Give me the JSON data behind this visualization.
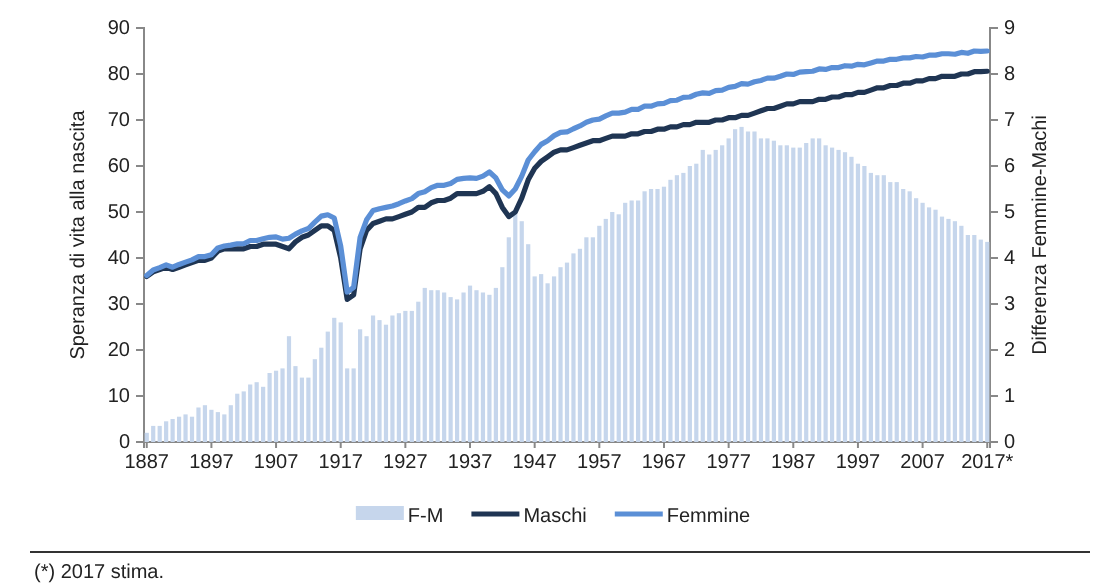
{
  "chart_data": {
    "type": "line",
    "ylabel": "Speranza di vita alla nascita",
    "y2label": "Differenza Femmine-Machi",
    "categories": [
      "1887",
      null,
      null,
      null,
      null,
      null,
      null,
      null,
      null,
      null,
      "1897",
      null,
      null,
      null,
      null,
      null,
      null,
      null,
      null,
      null,
      "1907",
      null,
      null,
      null,
      null,
      null,
      null,
      null,
      null,
      null,
      "1917",
      null,
      null,
      null,
      null,
      null,
      null,
      null,
      null,
      null,
      "1927",
      null,
      null,
      null,
      null,
      null,
      null,
      null,
      null,
      null,
      "1937",
      null,
      null,
      null,
      null,
      null,
      null,
      null,
      null,
      null,
      "1947",
      null,
      null,
      null,
      null,
      null,
      null,
      null,
      null,
      null,
      "1957",
      null,
      null,
      null,
      null,
      null,
      null,
      null,
      null,
      null,
      "1967",
      null,
      null,
      null,
      null,
      null,
      null,
      null,
      null,
      null,
      "1977",
      null,
      null,
      null,
      null,
      null,
      null,
      null,
      null,
      null,
      "1987",
      null,
      null,
      null,
      null,
      null,
      null,
      null,
      null,
      null,
      "1997",
      null,
      null,
      null,
      null,
      null,
      null,
      null,
      null,
      null,
      "2007",
      null,
      null,
      null,
      null,
      null,
      null,
      null,
      null,
      null,
      "2017*"
    ],
    "ylim": [
      0,
      90
    ],
    "yticks": [
      0,
      10,
      20,
      30,
      40,
      50,
      60,
      70,
      80,
      90
    ],
    "y2lim": [
      0,
      9
    ],
    "y2ticks": [
      0,
      1,
      2,
      3,
      4,
      5,
      6,
      7,
      8,
      9
    ],
    "grid": false,
    "legend": "bottom",
    "marker": "none",
    "series": [
      {
        "name": "F-M",
        "type": "bar",
        "axis": "y2",
        "color": "#c6d6ec",
        "values": [
          0.2,
          0.35,
          0.35,
          0.45,
          0.5,
          0.55,
          0.6,
          0.55,
          0.75,
          0.8,
          0.7,
          0.65,
          0.6,
          0.8,
          1.05,
          1.1,
          1.25,
          1.3,
          1.2,
          1.5,
          1.55,
          1.6,
          2.3,
          1.65,
          1.4,
          1.4,
          1.8,
          2.05,
          2.4,
          2.7,
          2.6,
          1.6,
          1.6,
          2.45,
          2.3,
          2.75,
          2.65,
          2.55,
          2.75,
          2.8,
          2.85,
          2.85,
          3.05,
          3.35,
          3.3,
          3.3,
          3.25,
          3.15,
          3.1,
          3.25,
          3.4,
          3.3,
          3.25,
          3.2,
          3.35,
          3.8,
          4.45,
          5.0,
          4.8,
          4.3,
          3.6,
          3.65,
          3.45,
          3.6,
          3.8,
          3.9,
          4.1,
          4.2,
          4.45,
          4.45,
          4.7,
          4.85,
          5.0,
          4.95,
          5.2,
          5.25,
          5.25,
          5.45,
          5.5,
          5.5,
          5.55,
          5.7,
          5.8,
          5.85,
          6.0,
          6.05,
          6.35,
          6.25,
          6.35,
          6.45,
          6.6,
          6.8,
          6.85,
          6.75,
          6.75,
          6.6,
          6.6,
          6.55,
          6.45,
          6.45,
          6.4,
          6.4,
          6.5,
          6.6,
          6.6,
          6.45,
          6.4,
          6.35,
          6.3,
          6.2,
          6.05,
          6.0,
          5.85,
          5.8,
          5.8,
          5.65,
          5.65,
          5.5,
          5.45,
          5.3,
          5.2,
          5.1,
          5.05,
          4.9,
          4.85,
          4.8,
          4.7,
          4.5,
          4.5,
          4.4,
          4.35
        ]
      },
      {
        "name": "Maschi",
        "color": "#1f3553",
        "values": [
          36,
          37,
          37.5,
          38,
          37.5,
          38,
          38.5,
          39,
          39.5,
          39.5,
          40,
          41.5,
          42,
          42,
          42,
          42,
          42.5,
          42.5,
          43,
          43,
          43,
          42.5,
          42,
          43.5,
          44.5,
          45,
          46,
          47,
          47,
          46,
          40,
          31,
          32,
          42,
          46,
          47.5,
          48,
          48.5,
          48.5,
          49,
          49.5,
          50,
          51,
          51,
          52,
          52.5,
          52.5,
          53,
          54,
          54,
          54,
          54,
          54.5,
          55.5,
          54,
          51,
          49,
          50,
          53,
          57,
          59.5,
          61,
          62,
          63,
          63.5,
          63.5,
          64,
          64.5,
          65,
          65.5,
          65.5,
          66,
          66.5,
          66.5,
          66.5,
          67,
          67,
          67.5,
          67.5,
          68,
          68,
          68.5,
          68.5,
          69,
          69,
          69.5,
          69.5,
          69.5,
          70,
          70,
          70.5,
          70.5,
          71,
          71,
          71.5,
          72,
          72.5,
          72.5,
          73,
          73.5,
          73.5,
          74,
          74,
          74,
          74.5,
          74.5,
          75,
          75,
          75.5,
          75.5,
          76,
          76,
          76.5,
          77,
          77,
          77.5,
          77.5,
          78,
          78,
          78.5,
          78.5,
          79,
          79,
          79.5,
          79.5,
          79.5,
          80,
          80,
          80.5,
          80.5,
          80.6
        ]
      },
      {
        "name": "Femmine",
        "color": "#5b8fd6",
        "values": [
          36.2,
          37.4,
          37.9,
          38.5,
          38,
          38.6,
          39.1,
          39.6,
          40.3,
          40.3,
          40.7,
          42.2,
          42.6,
          42.8,
          43.1,
          43.1,
          43.8,
          43.8,
          44.2,
          44.5,
          44.6,
          44.1,
          44.3,
          45.2,
          45.9,
          46.4,
          47.8,
          49.1,
          49.4,
          48.7,
          42.6,
          32.6,
          33.6,
          44.5,
          48.3,
          50.3,
          50.7,
          51,
          51.3,
          51.8,
          52.4,
          52.9,
          54,
          54.4,
          55.3,
          55.8,
          55.8,
          56.2,
          57.1,
          57.3,
          57.4,
          57.3,
          57.8,
          58.7,
          57.4,
          54.8,
          53.5,
          55,
          57.8,
          61.3,
          63.1,
          64.7,
          65.5,
          66.6,
          67.3,
          67.4,
          68.1,
          68.7,
          69.5,
          70,
          70.2,
          70.9,
          71.5,
          71.5,
          71.7,
          72.3,
          72.3,
          73,
          73,
          73.5,
          73.6,
          74.2,
          74.3,
          74.9,
          75,
          75.6,
          75.9,
          75.8,
          76.4,
          76.5,
          77.1,
          77.3,
          77.9,
          77.8,
          78.3,
          78.6,
          79.1,
          79.1,
          79.5,
          80,
          79.9,
          80.4,
          80.5,
          80.6,
          81.1,
          81,
          81.4,
          81.4,
          81.8,
          81.7,
          82.1,
          82,
          82.4,
          82.8,
          82.8,
          83.2,
          83.2,
          83.5,
          83.5,
          83.8,
          83.7,
          84.1,
          84.1,
          84.4,
          84.4,
          84.3,
          84.7,
          84.5,
          85,
          84.9,
          85
        ]
      }
    ],
    "annotations": [
      "(*) 2017 stima."
    ]
  }
}
